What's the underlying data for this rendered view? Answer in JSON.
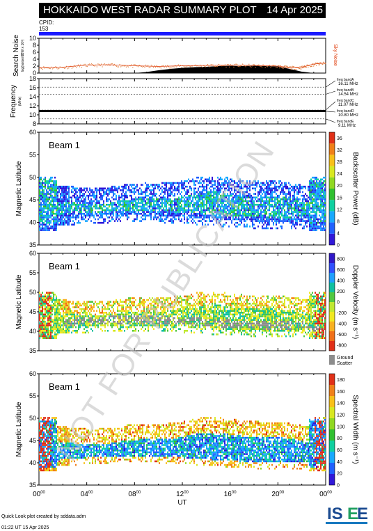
{
  "header": {
    "title": "HOKKAIDO WEST RADAR SUMMARY PLOT",
    "date": "14 Apr 2025"
  },
  "cpid": {
    "label": "CPID:",
    "value": "153"
  },
  "watermark": "NOT FOR PUBLICATION",
  "footer": {
    "line1": "Quick Look plot created by sddata.adm",
    "line2": "01:22 UT 15 Apr 2025"
  },
  "logo_text": "ISEE",
  "colors": {
    "cpid_bar": "#1a1aff",
    "noise": "#e04010",
    "search_noise": "#e08040",
    "ground_scatter": "#8c8c8c",
    "watermark": "#c0c0c0"
  },
  "chart_data": [
    {
      "type": "area",
      "ylabel": "Search Noise",
      "ylabel_sub": "log(noise/dBW x 10³)",
      "ylim": [
        0,
        10
      ],
      "yticks": [
        "0",
        "2",
        "4",
        "6",
        "8",
        "10"
      ],
      "legend": "Sky Noise",
      "sky_noise": [
        [
          0,
          0
        ],
        [
          4,
          0
        ],
        [
          8,
          0
        ],
        [
          9,
          0.3
        ],
        [
          10,
          0.8
        ],
        [
          11,
          1.2
        ],
        [
          12,
          1.5
        ],
        [
          13,
          1.7
        ],
        [
          14,
          1.8
        ],
        [
          15,
          2.0
        ],
        [
          16,
          2.1
        ],
        [
          17,
          2.0
        ],
        [
          18,
          2.1
        ],
        [
          19,
          2.0
        ],
        [
          20,
          1.9
        ],
        [
          21,
          1.2
        ],
        [
          22,
          0.4
        ],
        [
          23,
          0
        ],
        [
          24,
          0
        ]
      ],
      "search_noise": [
        [
          0,
          1.6
        ],
        [
          2,
          1.7
        ],
        [
          4,
          2.3
        ],
        [
          6,
          2.4
        ],
        [
          8,
          2.1
        ],
        [
          10,
          1.9
        ],
        [
          12,
          2.1
        ],
        [
          14,
          2.2
        ],
        [
          16,
          2.3
        ],
        [
          18,
          2.2
        ],
        [
          20,
          2.0
        ],
        [
          21,
          1.6
        ],
        [
          22,
          1.7
        ],
        [
          23,
          2.6
        ],
        [
          24,
          2.9
        ]
      ]
    },
    {
      "type": "line",
      "ylabel": "Frequency",
      "ylabel_sub": "(MHz)",
      "ylim": [
        8,
        18
      ],
      "yticks": [
        "8",
        "10",
        "12",
        "14",
        "16",
        "18"
      ],
      "bands": [
        {
          "name": "freq bandA",
          "freq": "16.11 MHz",
          "value": 16.11
        },
        {
          "name": "freq bandB",
          "freq": "14.54 MHz",
          "value": 14.54
        },
        {
          "name": "freq bandC",
          "freq": "11.07 MHz",
          "value": 11.07
        },
        {
          "name": "freq bandD",
          "freq": "10.80 MHz",
          "value": 10.8
        },
        {
          "name": "freq bandE",
          "freq": "9.11 MHz",
          "value": 9.11
        }
      ],
      "active_frequency": 10.85
    },
    {
      "type": "heatmap",
      "title": "Beam  1",
      "ylabel": "Magnetic Latitude",
      "ylim": [
        35,
        60
      ],
      "yticks": [
        "35",
        "40",
        "45",
        "50",
        "55",
        "60"
      ],
      "colorbar_label": "Backscatter Power (dB)",
      "colorbar_ticks": [
        "0",
        "4",
        "8",
        "12",
        "16",
        "20",
        "24",
        "28",
        "32",
        "36"
      ],
      "colorbar_range": [
        0,
        38
      ],
      "colormap": [
        "#3018d8",
        "#2060ff",
        "#18a8ff",
        "#10d0a0",
        "#30c030",
        "#90d820",
        "#d8e820",
        "#f8c018",
        "#f08018",
        "#e03018"
      ]
    },
    {
      "type": "heatmap",
      "title": "Beam  1",
      "ylabel": "Magnetic Latitude",
      "ylim": [
        35,
        60
      ],
      "yticks": [
        "35",
        "40",
        "45",
        "50",
        "55",
        "60"
      ],
      "colorbar_label": "Doppler Velocity (m s⁻¹)",
      "colorbar_ticks": [
        "-800",
        "-600",
        "-400",
        "-200",
        "0",
        "200",
        "400",
        "600",
        "800"
      ],
      "colorbar_range": [
        -900,
        900
      ],
      "ground_scatter_label": "Ground Scatter",
      "colormap": [
        "#e03018",
        "#f07018",
        "#f8b020",
        "#f0e820",
        "#c0e830",
        "#50c840",
        "#10c0a0",
        "#20a0ff",
        "#3050ff",
        "#3018c8"
      ]
    },
    {
      "type": "heatmap",
      "title": "Beam  1",
      "ylabel": "Magnetic Latitude",
      "ylim": [
        35,
        60
      ],
      "yticks": [
        "35",
        "40",
        "45",
        "50",
        "55",
        "60"
      ],
      "colorbar_label": "Spectral Width (m s⁻¹)",
      "colorbar_ticks": [
        "0",
        "20",
        "40",
        "60",
        "80",
        "100",
        "120",
        "140",
        "160",
        "180"
      ],
      "colorbar_range": [
        0,
        190
      ],
      "colormap": [
        "#3018d8",
        "#2060ff",
        "#18a8ff",
        "#10d0a0",
        "#30c030",
        "#90d820",
        "#d8e820",
        "#f8c018",
        "#f08018",
        "#e03018"
      ]
    }
  ],
  "x_axis": {
    "label": "UT",
    "ticks": [
      {
        "h": "00",
        "m": "00",
        "value": 0
      },
      {
        "h": "04",
        "m": "00",
        "value": 4
      },
      {
        "h": "08",
        "m": "00",
        "value": 8
      },
      {
        "h": "12",
        "m": "00",
        "value": 12
      },
      {
        "h": "16",
        "m": "00",
        "value": 16
      },
      {
        "h": "20",
        "m": "00",
        "value": 20
      },
      {
        "h": "00",
        "m": "00",
        "value": 24
      }
    ]
  }
}
